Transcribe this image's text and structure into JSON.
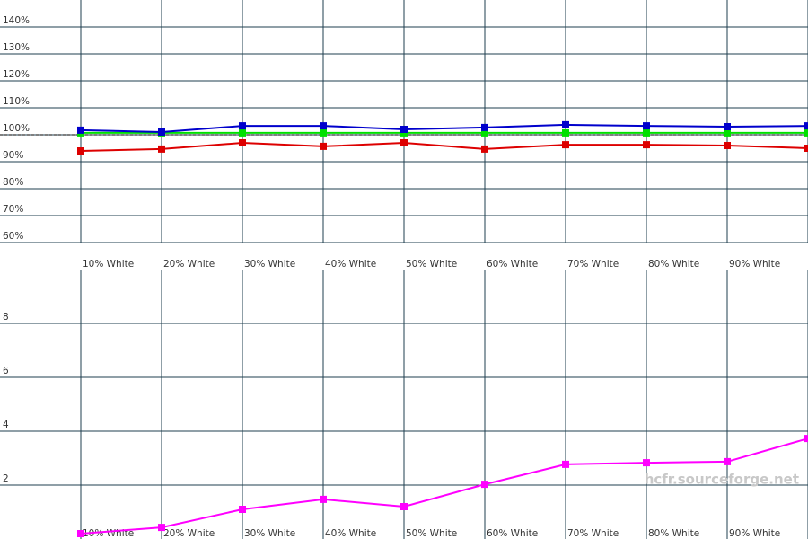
{
  "chart_data": [
    {
      "type": "line",
      "categories": [
        "10% White",
        "20% White",
        "30% White",
        "40% White",
        "50% White",
        "60% White",
        "70% White",
        "80% White",
        "90% White",
        null
      ],
      "series": [
        {
          "color": "#00e000",
          "values": [
            100.7,
            100.7,
            100.7,
            100.7,
            100.7,
            100.7,
            100.7,
            100.7,
            100.7,
            100.7
          ]
        },
        {
          "color": "#dd0000",
          "values": [
            94,
            94.7,
            97,
            95.7,
            97,
            94.7,
            96.3,
            96.3,
            96,
            95
          ]
        },
        {
          "color": "#0000cc",
          "values": [
            101.7,
            101,
            103.3,
            103.3,
            102,
            102.7,
            103.7,
            103.3,
            103,
            103.3
          ]
        }
      ],
      "ylim": [
        60,
        150
      ],
      "yticks": [
        {
          "value": 60,
          "label": "60%"
        },
        {
          "value": 70,
          "label": "70%"
        },
        {
          "value": 80,
          "label": "80%"
        },
        {
          "value": 90,
          "label": "90%"
        },
        {
          "value": 100,
          "label": "100%"
        },
        {
          "value": 110,
          "label": "110%"
        },
        {
          "value": 120,
          "label": "120%"
        },
        {
          "value": 130,
          "label": "130%"
        },
        {
          "value": 140,
          "label": "140%"
        }
      ],
      "reference_line": 100,
      "grid": true
    },
    {
      "type": "line",
      "categories": [
        "10% White",
        "20% White",
        "30% White",
        "40% White",
        "50% White",
        "60% White",
        "70% White",
        "80% White",
        "90% White",
        null
      ],
      "series": [
        {
          "color": "#ff00ff",
          "values": [
            0.2,
            0.43,
            1.1,
            1.47,
            1.2,
            2.03,
            2.77,
            2.83,
            2.87,
            3.73
          ]
        }
      ],
      "ylim": [
        0,
        10
      ],
      "yticks": [
        2,
        4,
        6,
        8
      ],
      "annotation": "hcfr.sourceforge.net",
      "grid": true
    }
  ]
}
